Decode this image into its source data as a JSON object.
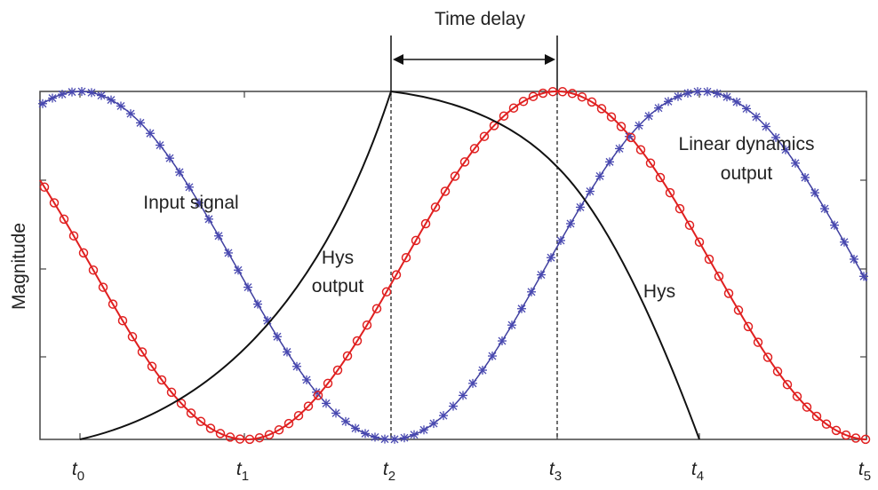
{
  "annotations": {
    "time_delay": "Time delay",
    "input_signal": "Input signal",
    "hys_output": [
      "Hys",
      "output"
    ],
    "linear_output": [
      "Linear dynamics",
      "output"
    ],
    "hys": "Hys"
  },
  "y_axis_label": "Magnitude",
  "x_labels": [
    {
      "base": "t",
      "sub": "0"
    },
    {
      "base": "t",
      "sub": "1"
    },
    {
      "base": "t",
      "sub": "2"
    },
    {
      "base": "t",
      "sub": "3"
    },
    {
      "base": "t",
      "sub": "4"
    },
    {
      "base": "t",
      "sub": "5"
    }
  ]
}
